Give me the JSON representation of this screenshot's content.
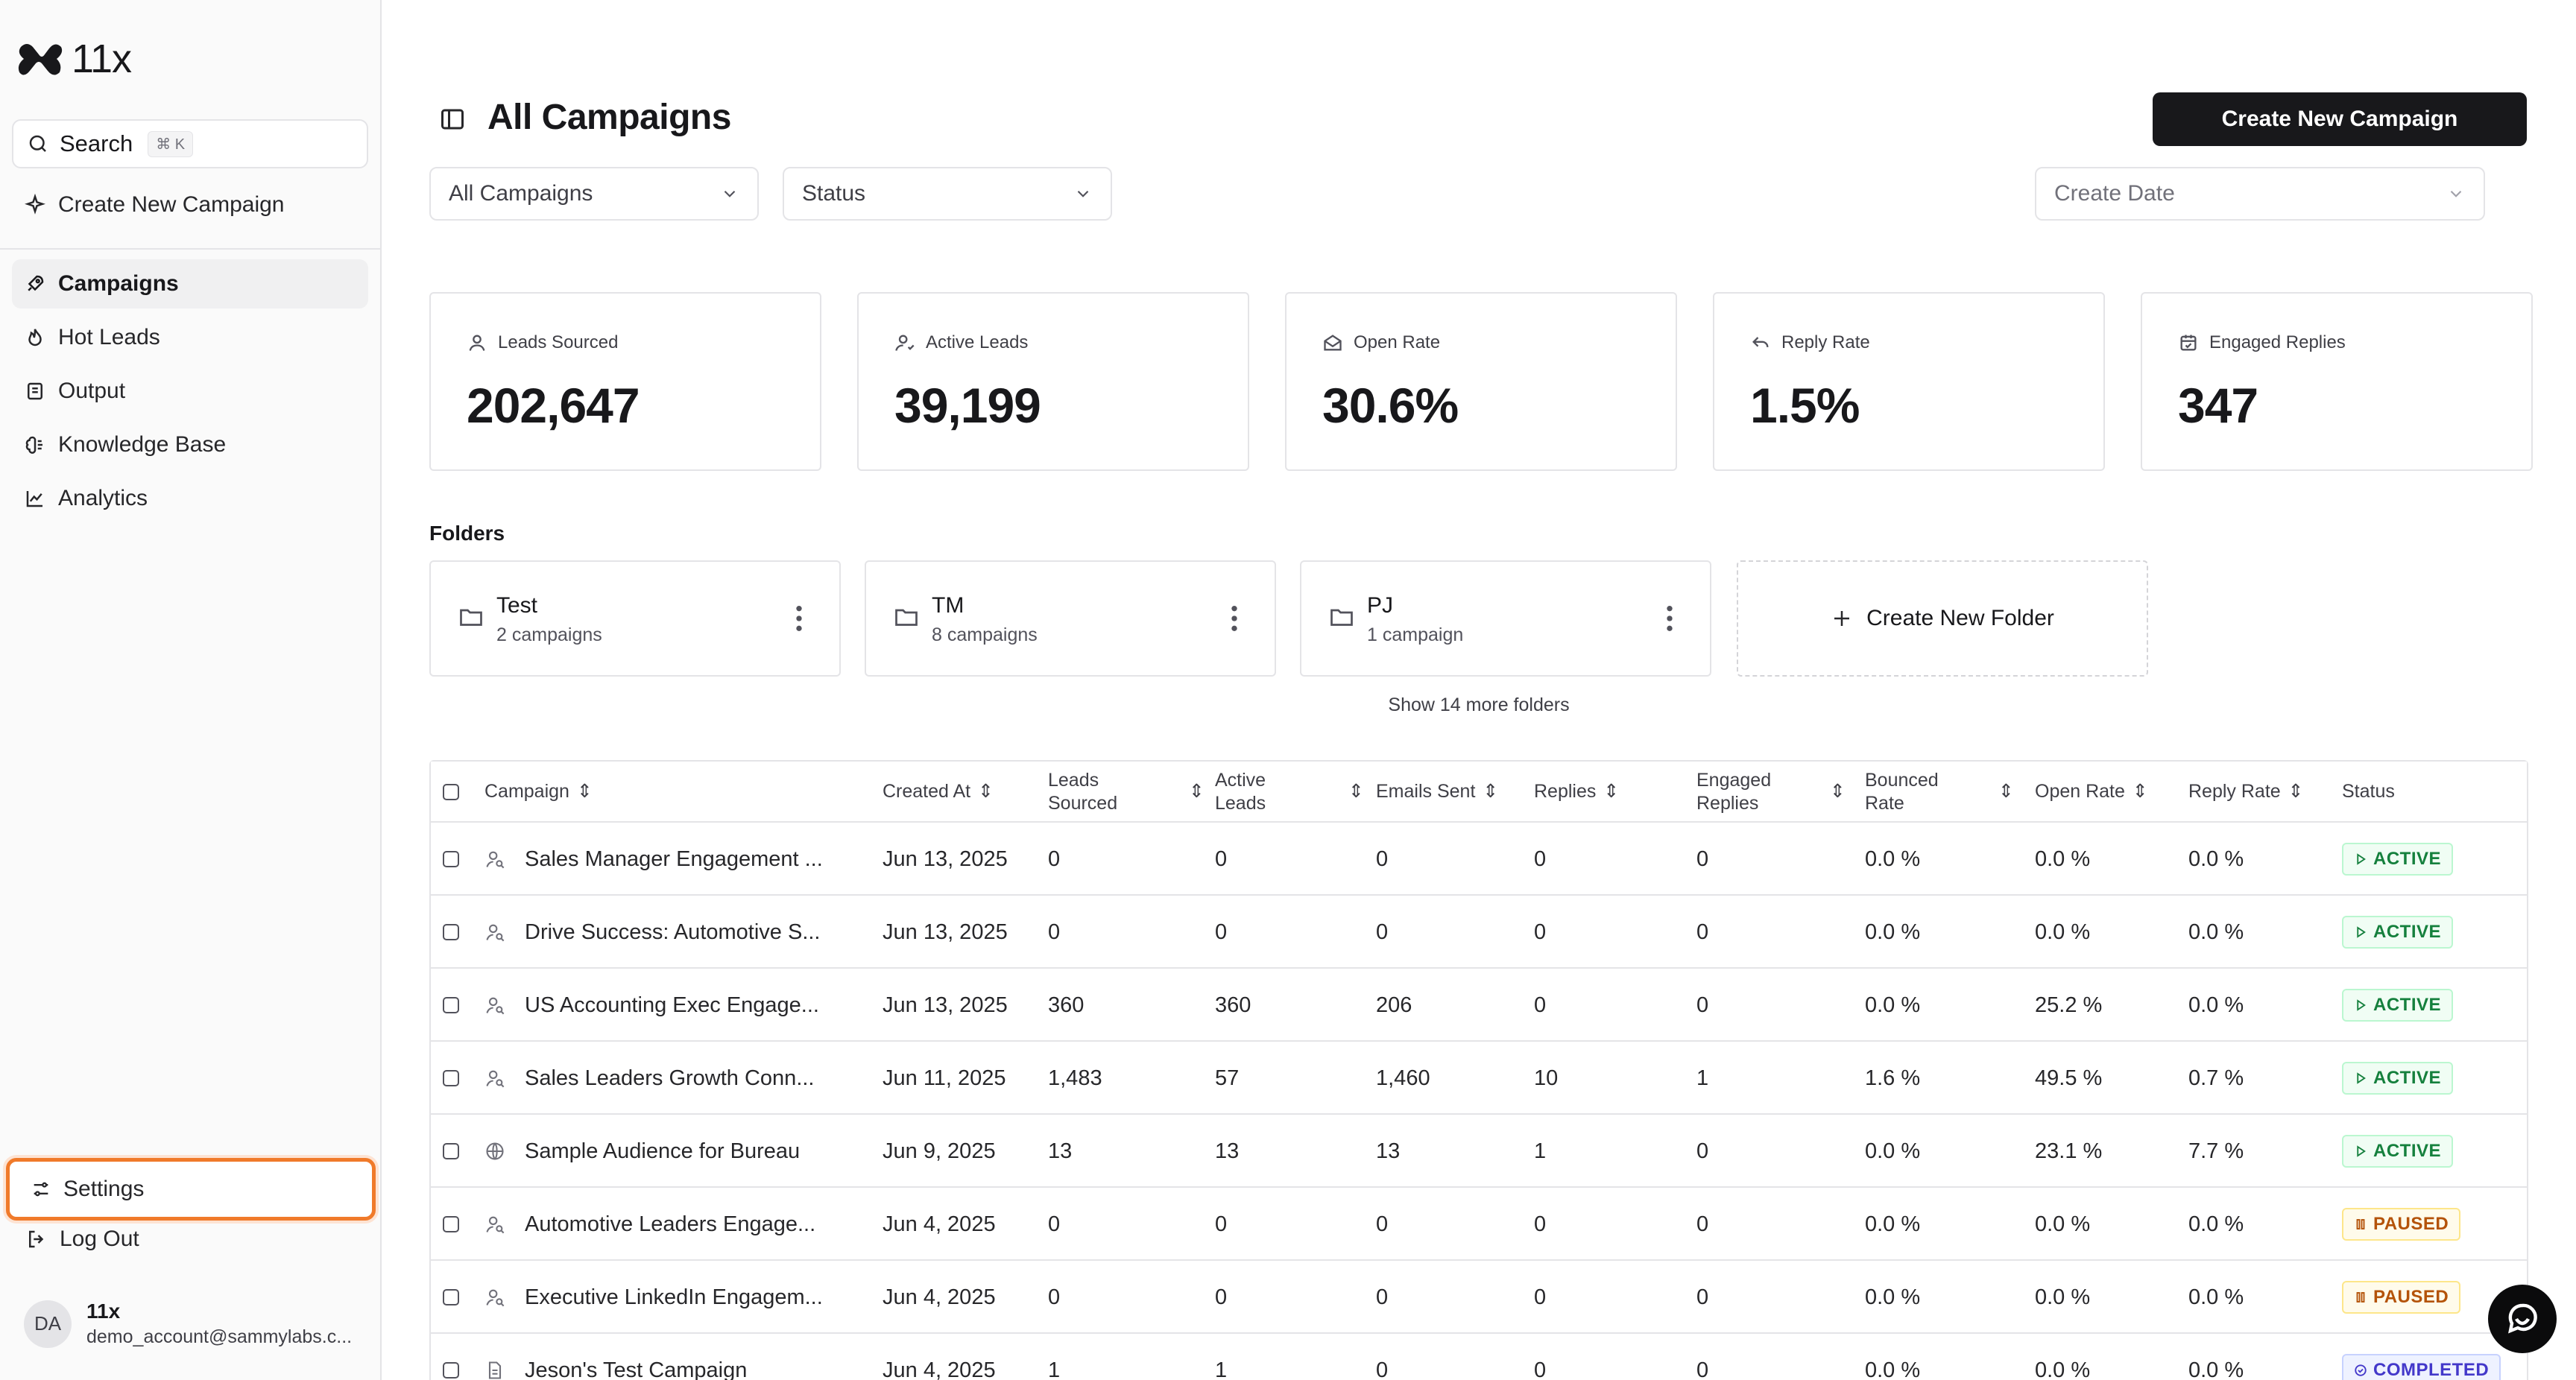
{
  "sidebar": {
    "logo_text": "11x",
    "search": {
      "label": "Search",
      "shortcut": "⌘ K"
    },
    "create_campaign": "Create New Campaign",
    "nav": [
      {
        "label": "Campaigns",
        "icon": "rocket-icon",
        "active": true
      },
      {
        "label": "Hot Leads",
        "icon": "flame-icon"
      },
      {
        "label": "Output",
        "icon": "document-icon"
      },
      {
        "label": "Knowledge Base",
        "icon": "brain-icon"
      },
      {
        "label": "Analytics",
        "icon": "chart-line-icon"
      }
    ],
    "settings": "Settings",
    "logout": "Log Out",
    "user": {
      "initials": "DA",
      "name": "11x",
      "email": "demo_account@sammylabs.c..."
    }
  },
  "header": {
    "title": "All Campaigns",
    "create_button": "Create New Campaign"
  },
  "filters": {
    "campaigns": "All Campaigns",
    "status": "Status",
    "date": "Create Date"
  },
  "stats": [
    {
      "label": "Leads Sourced",
      "value": "202,647",
      "icon": "user-icon"
    },
    {
      "label": "Active Leads",
      "value": "39,199",
      "icon": "user-check-icon"
    },
    {
      "label": "Open Rate",
      "value": "30.6%",
      "icon": "mail-open-icon"
    },
    {
      "label": "Reply Rate",
      "value": "1.5%",
      "icon": "reply-icon"
    },
    {
      "label": "Engaged Replies",
      "value": "347",
      "icon": "calendar-check-icon"
    }
  ],
  "folders": {
    "title": "Folders",
    "items": [
      {
        "name": "Test",
        "count": "2 campaigns"
      },
      {
        "name": "TM",
        "count": "8 campaigns"
      },
      {
        "name": "PJ",
        "count": "1 campaign"
      }
    ],
    "create": "Create New Folder",
    "show_more": "Show 14 more folders"
  },
  "table": {
    "headers": {
      "campaign": "Campaign",
      "created": "Created At",
      "leads_sourced": [
        "Leads",
        "Sourced"
      ],
      "active_leads": [
        "Active",
        "Leads"
      ],
      "emails_sent": "Emails Sent",
      "replies": "Replies",
      "engaged": [
        "Engaged",
        "Replies"
      ],
      "bounced": [
        "Bounced",
        "Rate"
      ],
      "open_rate": "Open Rate",
      "reply_rate": "Reply Rate",
      "status": "Status"
    },
    "rows": [
      {
        "name": "Sales Manager Engagement ...",
        "icon": "user-search-icon",
        "created": "Jun 13, 2025",
        "leads": "0",
        "active": "0",
        "sent": "0",
        "replies": "0",
        "engaged": "0",
        "bounced": "0.0 %",
        "open": "0.0 %",
        "reply": "0.0 %",
        "status": "ACTIVE",
        "status_type": "active"
      },
      {
        "name": "Drive Success: Automotive S...",
        "icon": "user-search-icon",
        "created": "Jun 13, 2025",
        "leads": "0",
        "active": "0",
        "sent": "0",
        "replies": "0",
        "engaged": "0",
        "bounced": "0.0 %",
        "open": "0.0 %",
        "reply": "0.0 %",
        "status": "ACTIVE",
        "status_type": "active"
      },
      {
        "name": "US Accounting Exec Engage...",
        "icon": "user-search-icon",
        "created": "Jun 13, 2025",
        "leads": "360",
        "active": "360",
        "sent": "206",
        "replies": "0",
        "engaged": "0",
        "bounced": "0.0 %",
        "open": "25.2 %",
        "reply": "0.0 %",
        "status": "ACTIVE",
        "status_type": "active"
      },
      {
        "name": "Sales Leaders Growth Conn...",
        "icon": "user-search-icon",
        "created": "Jun 11, 2025",
        "leads": "1,483",
        "active": "57",
        "sent": "1,460",
        "replies": "10",
        "engaged": "1",
        "bounced": "1.6 %",
        "open": "49.5 %",
        "reply": "0.7 %",
        "status": "ACTIVE",
        "status_type": "active"
      },
      {
        "name": "Sample Audience for Bureau",
        "icon": "globe-icon",
        "created": "Jun 9, 2025",
        "leads": "13",
        "active": "13",
        "sent": "13",
        "replies": "1",
        "engaged": "0",
        "bounced": "0.0 %",
        "open": "23.1 %",
        "reply": "7.7 %",
        "status": "ACTIVE",
        "status_type": "active"
      },
      {
        "name": "Automotive Leaders Engage...",
        "icon": "user-search-icon",
        "created": "Jun 4, 2025",
        "leads": "0",
        "active": "0",
        "sent": "0",
        "replies": "0",
        "engaged": "0",
        "bounced": "0.0 %",
        "open": "0.0 %",
        "reply": "0.0 %",
        "status": "PAUSED",
        "status_type": "paused"
      },
      {
        "name": "Executive LinkedIn Engagem...",
        "icon": "user-search-icon",
        "created": "Jun 4, 2025",
        "leads": "0",
        "active": "0",
        "sent": "0",
        "replies": "0",
        "engaged": "0",
        "bounced": "0.0 %",
        "open": "0.0 %",
        "reply": "0.0 %",
        "status": "PAUSED",
        "status_type": "paused"
      },
      {
        "name": "Jeson's Test Campaign",
        "icon": "file-icon",
        "created": "Jun 4, 2025",
        "leads": "1",
        "active": "1",
        "sent": "0",
        "replies": "0",
        "engaged": "0",
        "bounced": "0.0 %",
        "open": "0.0 %",
        "reply": "0.0 %",
        "status": "COMPLETED",
        "status_type": "completed"
      }
    ]
  }
}
